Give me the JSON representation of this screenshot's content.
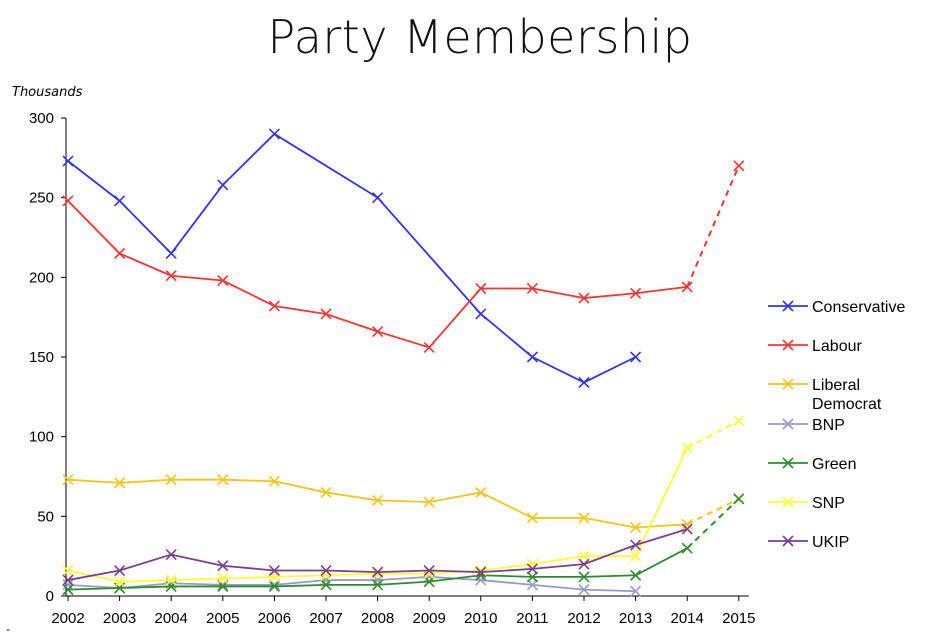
{
  "chart_data": {
    "type": "line",
    "title": "Party Membership",
    "ylabel": "Thousands",
    "xlabel": "",
    "ylim": [
      0,
      300
    ],
    "yticks": [
      0,
      50,
      100,
      150,
      200,
      250,
      300
    ],
    "categories": [
      "2002",
      "2003",
      "2004",
      "2005",
      "2006",
      "2007",
      "2008",
      "2009",
      "2010",
      "2011",
      "2012",
      "2013",
      "2014",
      "2015"
    ],
    "grid": false,
    "legend_position": "right",
    "series": [
      {
        "name": "Conservative",
        "color": "#3333ff",
        "values": [
          273,
          248,
          215,
          258,
          290,
          null,
          250,
          null,
          177,
          150,
          134,
          150,
          null,
          null
        ],
        "projected_from": null
      },
      {
        "name": "Labour",
        "color": "#ff3333",
        "values": [
          248,
          215,
          201,
          198,
          182,
          177,
          166,
          156,
          193,
          193,
          187,
          190,
          194,
          270
        ],
        "projected_from": "2014"
      },
      {
        "name": "Liberal Democrat",
        "color": "#f5c518",
        "values": [
          73,
          71,
          73,
          73,
          72,
          65,
          60,
          59,
          65,
          49,
          49,
          43,
          45,
          61
        ],
        "projected_from": "2014"
      },
      {
        "name": "BNP",
        "color": "#9a9ac8",
        "values": [
          7,
          5,
          8,
          7,
          7,
          10,
          10,
          12,
          10,
          7,
          4,
          3,
          null,
          null
        ],
        "projected_from": null
      },
      {
        "name": "Green",
        "color": "#2e8b2e",
        "values": [
          4,
          5,
          6,
          6,
          6,
          7,
          7,
          9,
          13,
          12,
          12,
          13,
          30,
          61
        ],
        "projected_from": "2014"
      },
      {
        "name": "SNP",
        "color": "#ffff33",
        "values": [
          16,
          9,
          10,
          11,
          12,
          13,
          14,
          14,
          16,
          20,
          25,
          25,
          93,
          110
        ],
        "projected_from": "2014"
      },
      {
        "name": "UKIP",
        "color": "#7b3f8f",
        "values": [
          10,
          16,
          26,
          19,
          16,
          16,
          15,
          16,
          15,
          17,
          20,
          32,
          42,
          null
        ],
        "projected_from": null
      }
    ]
  },
  "footnote": "-"
}
